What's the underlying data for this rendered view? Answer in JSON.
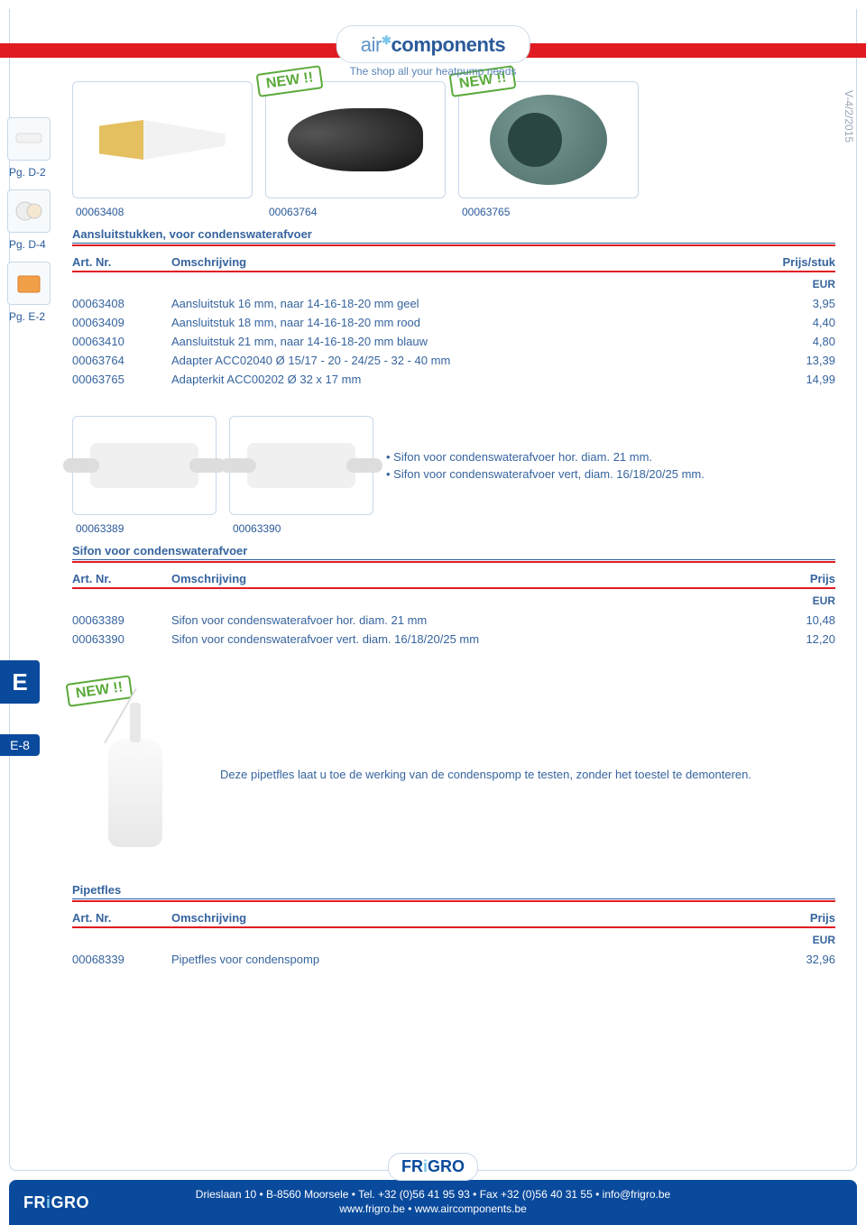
{
  "meta": {
    "version_side": "V-4/2/2015"
  },
  "logo": {
    "part1": "air",
    "part2": "components",
    "tagline": "The shop all your heatpump needs"
  },
  "new_badge": "NEW !!",
  "sidebar": {
    "refs": [
      "Pg. D-2",
      "Pg. D-4",
      "Pg. E-2"
    ],
    "tab_letter": "E",
    "page_num": "E-8"
  },
  "section1": {
    "img_ids": [
      "00063408",
      "00063764",
      "00063765"
    ],
    "title": "Aansluitstukken, voor condenswaterafvoer",
    "head": {
      "art": "Art. Nr.",
      "desc": "Omschrijving",
      "price": "Prijs/stuk"
    },
    "currency": "EUR",
    "rows": [
      {
        "art": "00063408",
        "desc": "Aansluitstuk 16 mm, naar 14-16-18-20 mm geel",
        "price": "3,95"
      },
      {
        "art": "00063409",
        "desc": "Aansluitstuk 18 mm, naar 14-16-18-20 mm rood",
        "price": "4,40"
      },
      {
        "art": "00063410",
        "desc": "Aansluitstuk 21 mm, naar 14-16-18-20 mm blauw",
        "price": "4,80"
      },
      {
        "art": "00063764",
        "desc": "Adapter ACC02040 Ø 15/17 - 20 - 24/25 - 32 - 40 mm",
        "price": "13,39"
      },
      {
        "art": "00063765",
        "desc": "Adapterkit ACC00202 Ø 32 x 17 mm",
        "price": "14,99"
      }
    ]
  },
  "section2": {
    "bullets": [
      "Sifon voor condenswaterafvoer hor. diam. 21 mm.",
      "Sifon voor condenswaterafvoer vert, diam. 16/18/20/25 mm."
    ],
    "img_ids": [
      "00063389",
      "00063390"
    ],
    "title": "Sifon voor condenswaterafvoer",
    "head": {
      "art": "Art. Nr.",
      "desc": "Omschrijving",
      "price": "Prijs"
    },
    "currency": "EUR",
    "rows": [
      {
        "art": "00063389",
        "desc": "Sifon voor condenswaterafvoer hor. diam. 21 mm",
        "price": "10,48"
      },
      {
        "art": "00063390",
        "desc": "Sifon voor condenswaterafvoer vert. diam. 16/18/20/25 mm",
        "price": "12,20"
      }
    ]
  },
  "section3": {
    "blurb": "Deze pipetfles laat u toe de werking van de condenspomp te testen, zonder het toestel te demonteren.",
    "title": "Pipetfles",
    "head": {
      "art": "Art. Nr.",
      "desc": "Omschrijving",
      "price": "Prijs"
    },
    "currency": "EUR",
    "rows": [
      {
        "art": "00068339",
        "desc": "Pipetfles voor condenspomp",
        "price": "32,96"
      }
    ]
  },
  "footer": {
    "brand1": "FR",
    "brand_dot": "i",
    "brand2": "GRO",
    "line1": "Drieslaan 10 • B-8560 Moorsele • Tel. +32 (0)56 41 95 93 • Fax +32 (0)56 40 31 55 • info@frigro.be",
    "line2": "www.frigro.be • www.aircomponents.be"
  },
  "colors": {
    "red": "#e11b22",
    "blue_primary": "#0a4a9c",
    "blue_text": "#36649e",
    "blue_light": "#7cc5ea",
    "border": "#c8d8ea",
    "green": "#5aaa3a"
  }
}
